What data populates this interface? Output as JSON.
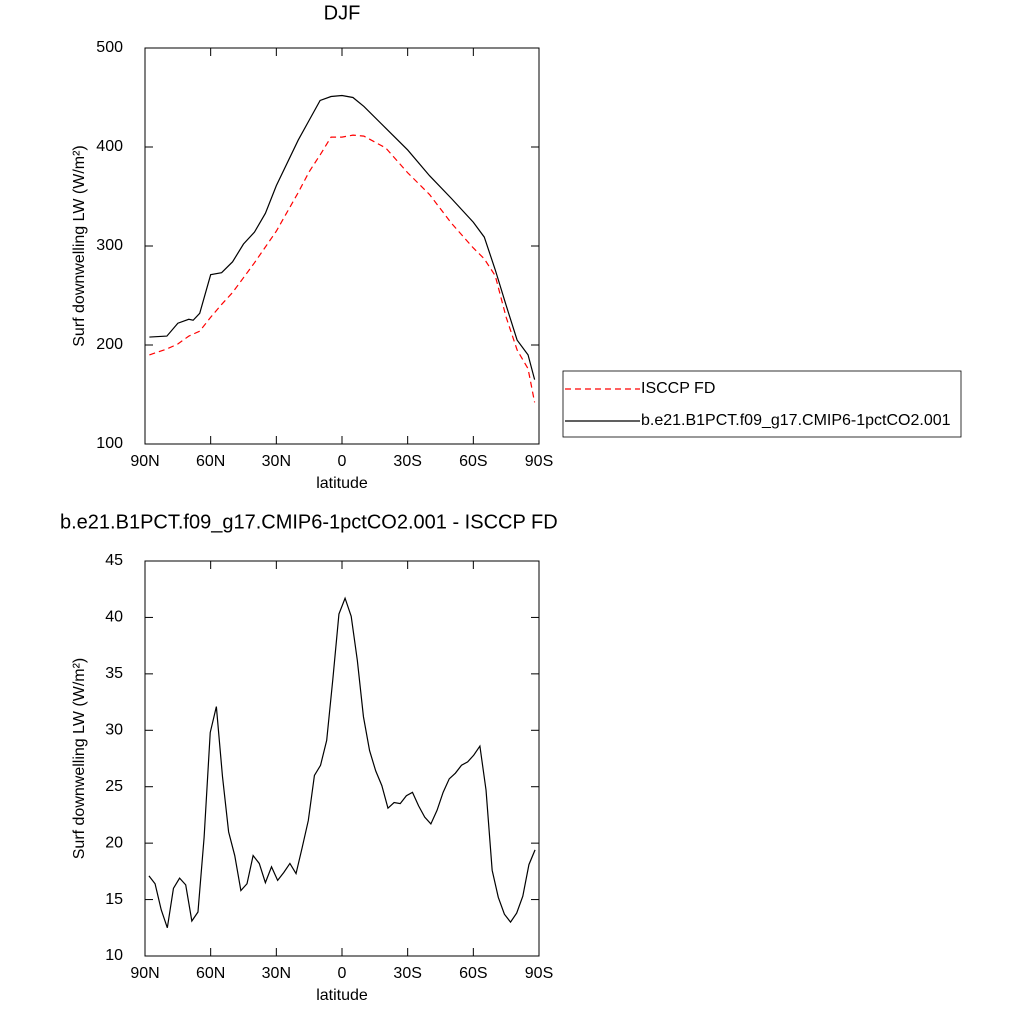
{
  "chart_data": [
    {
      "type": "line",
      "title": "DJF",
      "xlabel": "latitude",
      "ylabel": "Surf downwelling LW (W/m²)",
      "xlim": [
        90,
        -90
      ],
      "ylim": [
        100,
        500
      ],
      "xticks": [
        {
          "value": 90,
          "label": "90N"
        },
        {
          "value": 60,
          "label": "60N"
        },
        {
          "value": 30,
          "label": "30N"
        },
        0,
        {
          "value": -30,
          "label": "30S"
        },
        {
          "value": -60,
          "label": "60S"
        },
        {
          "value": -90,
          "label": "90S"
        }
      ],
      "yticks": [
        100,
        200,
        300,
        400,
        500
      ],
      "x": [
        88,
        80,
        75,
        70,
        68,
        65,
        60,
        55,
        50,
        45,
        40,
        35,
        30,
        20,
        15,
        10,
        5,
        0,
        -5,
        -10,
        -20,
        -30,
        -40,
        -50,
        -60,
        -65,
        -70,
        -75,
        -80,
        -85,
        -88
      ],
      "series": [
        {
          "name": "ISCCP FD",
          "color": "#ff0000",
          "dash": true,
          "values": [
            190,
            196,
            201,
            209,
            211,
            214,
            228,
            241,
            253,
            268,
            283,
            299,
            315,
            354,
            375,
            392,
            410,
            410,
            412,
            411,
            399,
            374,
            352,
            323,
            298,
            287,
            270,
            228,
            195,
            176,
            142
          ]
        },
        {
          "name": "b.e21.B1PCT.f09_g17.CMIP6-1pctCO2.001",
          "color": "#000000",
          "dash": false,
          "values": [
            208,
            209,
            222,
            226,
            225,
            232,
            271,
            273,
            284,
            302,
            314,
            333,
            361,
            407,
            427,
            447,
            451,
            452,
            450,
            441,
            419,
            397,
            371,
            348,
            324,
            309,
            276,
            240,
            205,
            190,
            165
          ]
        }
      ]
    },
    {
      "type": "line",
      "title": "b.e21.B1PCT.f09_g17.CMIP6-1pctCO2.001 - ISCCP FD",
      "xlabel": "latitude",
      "ylabel": "Surf downwelling LW (W/m²)",
      "xlim": [
        90,
        -90
      ],
      "ylim": [
        10,
        45
      ],
      "xticks": [
        {
          "value": 90,
          "label": "90N"
        },
        {
          "value": 60,
          "label": "60N"
        },
        {
          "value": 30,
          "label": "30N"
        },
        0,
        {
          "value": -30,
          "label": "30S"
        },
        {
          "value": -60,
          "label": "60S"
        },
        {
          "value": -90,
          "label": "90S"
        }
      ],
      "yticks": [
        10,
        15,
        20,
        25,
        30,
        35,
        40,
        45
      ],
      "x": [
        88.2,
        85.4,
        82.6,
        79.8,
        77,
        74.2,
        71.4,
        68.6,
        65.8,
        63,
        60.2,
        57.4,
        54.6,
        51.8,
        49,
        46.2,
        43.4,
        40.6,
        37.8,
        35,
        32.2,
        29.4,
        26.6,
        23.8,
        21,
        18.2,
        15.4,
        12.6,
        9.8,
        7,
        4.2,
        1.4,
        -1.4,
        -4.2,
        -7,
        -9.8,
        -12.6,
        -15.4,
        -18.2,
        -21,
        -23.8,
        -26.6,
        -29.4,
        -32.2,
        -35,
        -37.8,
        -40.6,
        -43.4,
        -46.2,
        -49,
        -51.8,
        -54.6,
        -57.4,
        -60.2,
        -63,
        -65.8,
        -68.6,
        -71.4,
        -74.2,
        -77,
        -79.8,
        -82.6,
        -85.4,
        -88.2
      ],
      "series": [
        {
          "color": "#000000",
          "dash": false,
          "values": [
            17.1,
            16.4,
            14.1,
            12.5,
            16.0,
            16.9,
            16.3,
            13.1,
            13.9,
            20.5,
            29.8,
            32.1,
            25.9,
            21.0,
            18.9,
            15.8,
            16.4,
            18.9,
            18.2,
            16.5,
            17.9,
            16.7,
            17.4,
            18.2,
            17.3,
            19.6,
            22.0,
            26.0,
            26.9,
            29.1,
            34.5,
            40.3,
            41.7,
            40.1,
            36.2,
            31.2,
            28.2,
            26.4,
            25.1,
            23.1,
            23.6,
            23.5,
            24.2,
            24.5,
            23.3,
            22.3,
            21.7,
            22.9,
            24.5,
            25.7,
            26.2,
            26.9,
            27.2,
            27.8,
            28.6,
            24.7,
            17.6,
            15.2,
            13.7,
            13.0,
            13.8,
            15.3,
            18.1,
            19.4
          ]
        }
      ]
    }
  ]
}
